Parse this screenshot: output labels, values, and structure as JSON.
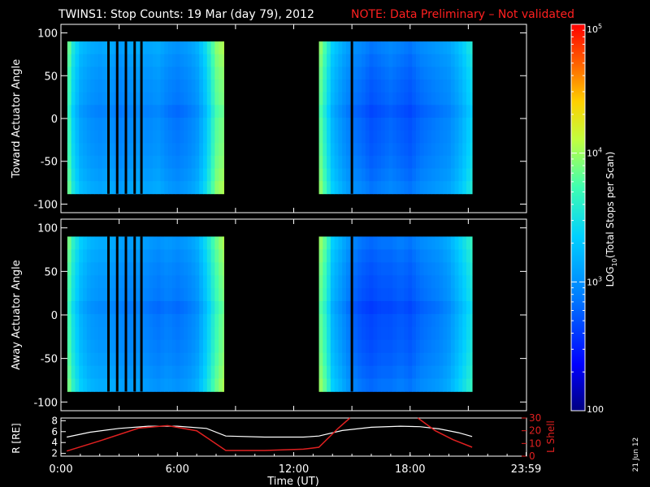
{
  "title": {
    "main": "TWINS1: Stop Counts: 19 Mar (day  79), 2012",
    "note": "NOTE: Data Preliminary – Not validated",
    "note_color": "#ff2020"
  },
  "stamp": "21 Jun 12",
  "colorbar": {
    "label": "LOG10(Total Stops per Scan)",
    "label_main": "LOG",
    "label_sub": "10",
    "label_rest": "(Total Stops per Scan)",
    "ticks": [
      {
        "text": "10",
        "exp": "5",
        "value": 100000
      },
      {
        "text": "10",
        "exp": "4",
        "value": 10000
      },
      {
        "text": "10",
        "exp": "3",
        "value": 1000
      },
      {
        "text": "100",
        "exp": "",
        "value": 100
      }
    ],
    "range": [
      100,
      100000
    ],
    "scale": "log",
    "colormap": "rainbow (blue→cyan→yellow→red)"
  },
  "chart_data": [
    {
      "type": "heatmap",
      "panel": "top",
      "ylabel": "Toward Actuator Angle",
      "ylim": [
        -110,
        110
      ],
      "yticks": [
        100,
        50,
        0,
        -50,
        -100
      ],
      "y_data_range": [
        -88,
        90
      ],
      "xlim": [
        0,
        24
      ],
      "data_blocks_hours": [
        [
          0.33,
          8.4
        ],
        [
          13.3,
          21.2
        ]
      ],
      "gap_lines_hours": [
        2.45,
        2.9,
        3.35,
        3.8,
        4.15,
        15.0
      ],
      "profile_hours": [
        0.3,
        0.6,
        1.0,
        1.5,
        2.0,
        2.5,
        3.0,
        3.5,
        4.0,
        4.5,
        5.0,
        5.5,
        6.0,
        6.5,
        7.0,
        7.5,
        8.0,
        8.4,
        13.3,
        13.7,
        14.0,
        14.5,
        15.0,
        15.5,
        16.0,
        16.5,
        17.0,
        17.5,
        18.0,
        18.5,
        19.0,
        19.5,
        20.0,
        20.5,
        21.2
      ],
      "profile_log10_counts": [
        3.9,
        3.4,
        3.1,
        3.0,
        2.95,
        3.0,
        2.9,
        2.95,
        3.0,
        2.95,
        3.0,
        2.9,
        2.85,
        2.9,
        3.0,
        3.3,
        3.8,
        3.9,
        3.9,
        3.5,
        3.2,
        3.0,
        2.85,
        2.8,
        2.7,
        2.75,
        2.8,
        2.75,
        2.7,
        2.8,
        2.85,
        2.9,
        2.95,
        3.1,
        3.4
      ]
    },
    {
      "type": "heatmap",
      "panel": "middle",
      "ylabel": "Away Actuator Angle",
      "ylim": [
        -110,
        110
      ],
      "yticks": [
        100,
        50,
        0,
        -50,
        -100
      ],
      "y_data_range": [
        -88,
        90
      ],
      "xlim": [
        0,
        24
      ],
      "data_blocks_hours": [
        [
          0.33,
          8.4
        ],
        [
          13.3,
          21.2
        ]
      ],
      "gap_lines_hours": [
        2.45,
        2.9,
        3.35,
        3.8,
        4.15,
        15.0
      ],
      "profile_hours": [
        0.3,
        0.6,
        1.0,
        1.5,
        2.0,
        2.5,
        3.0,
        3.5,
        4.0,
        4.5,
        5.0,
        5.5,
        6.0,
        6.5,
        7.0,
        7.5,
        8.0,
        8.4,
        13.3,
        13.7,
        14.0,
        14.5,
        15.0,
        15.5,
        16.0,
        16.5,
        17.0,
        17.5,
        18.0,
        18.5,
        19.0,
        19.5,
        20.0,
        20.5,
        21.2
      ],
      "profile_log10_counts": [
        3.9,
        3.5,
        3.2,
        3.05,
        3.0,
        3.0,
        2.95,
        2.9,
        2.95,
        2.9,
        2.85,
        2.9,
        2.85,
        2.9,
        3.0,
        3.3,
        3.7,
        3.9,
        3.9,
        3.6,
        3.2,
        3.0,
        2.8,
        2.7,
        2.65,
        2.7,
        2.7,
        2.75,
        2.7,
        2.8,
        2.85,
        2.9,
        3.0,
        3.2,
        3.5
      ]
    },
    {
      "type": "line",
      "panel": "bottom",
      "xlabel": "Time (UT)",
      "xticks": [
        "0:00",
        "6:00",
        "12:00",
        "18:00",
        "23:59"
      ],
      "xtick_hours": [
        0,
        6,
        12,
        18,
        23.98
      ],
      "xlim": [
        0,
        24
      ],
      "series": [
        {
          "name": "R [RE]",
          "axis": "left",
          "ylim": [
            1.5,
            8.5
          ],
          "yticks": [
            2,
            4,
            6,
            8
          ],
          "color": "#ffffff",
          "x": [
            0.3,
            1.5,
            3.0,
            4.5,
            6.0,
            7.5,
            8.5,
            10.5,
            12.5,
            13.3,
            14.5,
            16.0,
            17.5,
            18.5,
            19.5,
            20.5,
            21.2
          ],
          "y": [
            5.0,
            5.9,
            6.6,
            7.0,
            7.0,
            6.6,
            5.2,
            5.0,
            5.0,
            5.2,
            6.2,
            6.8,
            7.0,
            6.9,
            6.5,
            5.8,
            5.1
          ]
        },
        {
          "name": "L Shell",
          "axis": "right",
          "ylim": [
            0,
            30
          ],
          "yticks": [
            0,
            10,
            20,
            30
          ],
          "color": "#e02020",
          "x": [
            0.3,
            2.0,
            4.0,
            5.5,
            7.0,
            8.5,
            10.5,
            12.5,
            13.3,
            14.3,
            14.9
          ],
          "y": [
            4.0,
            12.0,
            22.0,
            24.0,
            20.0,
            4.5,
            4.5,
            5.5,
            7.0,
            22.0,
            30.0
          ],
          "x2": [
            18.4,
            19.3,
            20.2,
            21.2
          ],
          "y2": [
            30.0,
            20.0,
            13.0,
            7.0
          ]
        }
      ]
    }
  ]
}
